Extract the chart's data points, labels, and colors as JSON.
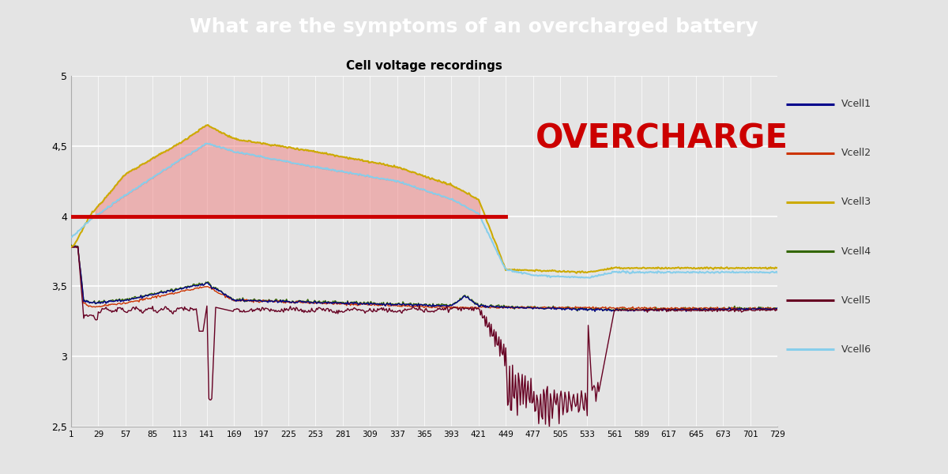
{
  "title": "What are the symptoms of an overcharged battery",
  "title_bg": "#3a3a3a",
  "title_color": "#ffffff",
  "subtitle": "Cell voltage recordings",
  "ylim": [
    2.5,
    5.0
  ],
  "xlim": [
    1,
    729
  ],
  "yticks": [
    2.5,
    3.0,
    3.5,
    4.0,
    4.5,
    5.0
  ],
  "ytick_labels": [
    "2,5",
    "3",
    "3,5",
    "4",
    "4,5",
    "5"
  ],
  "xtick_labels": [
    "1",
    "29",
    "57",
    "85",
    "113",
    "141",
    "169",
    "197",
    "225",
    "253",
    "281",
    "309",
    "337",
    "365",
    "393",
    "421",
    "449",
    "477",
    "505",
    "533",
    "561",
    "589",
    "617",
    "645",
    "673",
    "701",
    "729"
  ],
  "overcharge_text": "OVERCHARGE",
  "overcharge_color": "#cc0000",
  "hline_y": 4.0,
  "hline_color": "#cc0000",
  "hline_xstart": 1,
  "hline_xend": 449,
  "fill_color": "#f08080",
  "fill_alpha": 0.5,
  "legend_labels": [
    "Vcell1",
    "Vcell2",
    "Vcell3",
    "Vcell4",
    "Vcell5",
    "Vcell6"
  ],
  "legend_colors": [
    "#00008B",
    "#cc3300",
    "#ccaa00",
    "#336600",
    "#660022",
    "#87ceeb"
  ],
  "bg_color": "#e4e4e4",
  "grid_color": "#ffffff",
  "line_widths": [
    1.0,
    1.0,
    1.5,
    1.0,
    1.0,
    1.5
  ]
}
